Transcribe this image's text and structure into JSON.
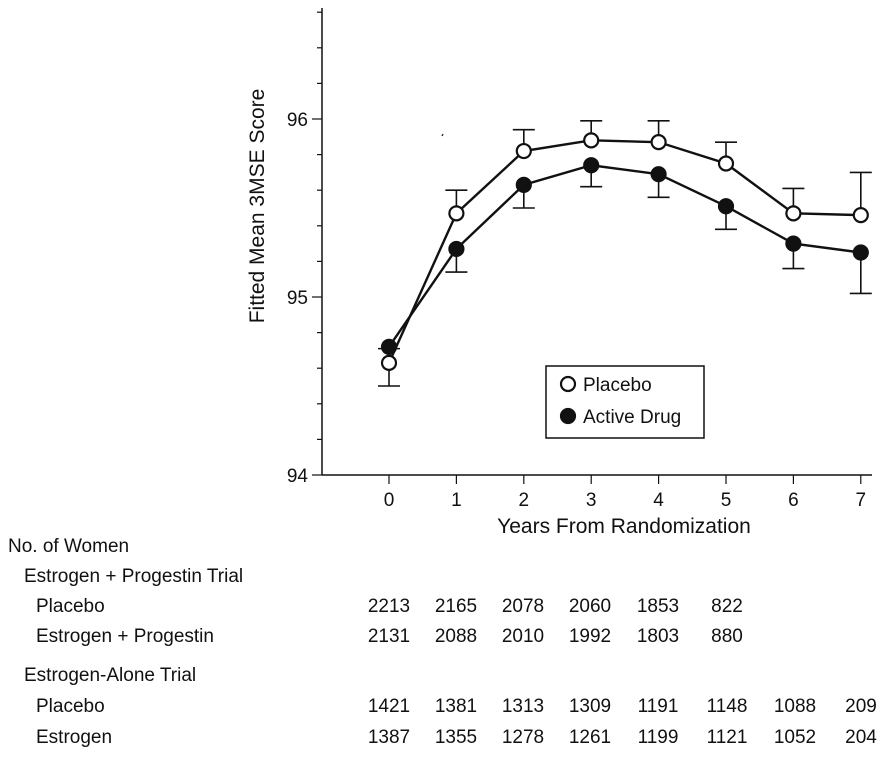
{
  "chart_data": {
    "type": "line",
    "title": "",
    "xlabel": "Years From Randomization",
    "ylabel": "Fitted Mean 3MSE Score",
    "x": [
      0,
      1,
      2,
      3,
      4,
      5,
      6,
      7
    ],
    "x_tick_labels": [
      "0",
      "1",
      "2",
      "3",
      "4",
      "5",
      "6",
      "7"
    ],
    "xlim": [
      -1,
      7
    ],
    "ylim": [
      94,
      96.6
    ],
    "y_ticks": [
      94,
      95,
      96
    ],
    "y_tick_labels": [
      "94",
      "95",
      "96"
    ],
    "legend_position": "center-right",
    "series": [
      {
        "name": "Placebo",
        "marker": "open-circle",
        "values": [
          94.63,
          95.47,
          95.82,
          95.88,
          95.87,
          95.75,
          95.47,
          95.46
        ],
        "error": [
          0.08,
          0.13,
          0.12,
          0.11,
          0.12,
          0.12,
          0.14,
          0.24
        ],
        "error_direction": "up"
      },
      {
        "name": "Active Drug",
        "marker": "filled-circle",
        "values": [
          94.72,
          95.27,
          95.63,
          95.74,
          95.69,
          95.51,
          95.3,
          95.25
        ],
        "error": [
          0.22,
          0.13,
          0.13,
          0.12,
          0.13,
          0.13,
          0.14,
          0.23
        ],
        "error_direction": "down"
      }
    ]
  },
  "table": {
    "heading": "No. of Women",
    "groups": [
      {
        "name": "Estrogen + Progestin Trial",
        "rows": [
          {
            "label": "Placebo",
            "values": [
              "2213",
              "2165",
              "2078",
              "2060",
              "1853",
              "822"
            ]
          },
          {
            "label": "Estrogen + Progestin",
            "values": [
              "2131",
              "2088",
              "2010",
              "1992",
              "1803",
              "880"
            ]
          }
        ]
      },
      {
        "name": "Estrogen-Alone Trial",
        "rows": [
          {
            "label": "Placebo",
            "values": [
              "1421",
              "1381",
              "1313",
              "1309",
              "1191",
              "1148",
              "1088",
              "209"
            ]
          },
          {
            "label": "Estrogen",
            "values": [
              "1387",
              "1355",
              "1278",
              "1261",
              "1199",
              "1121",
              "1052",
              "204"
            ]
          }
        ]
      }
    ]
  }
}
